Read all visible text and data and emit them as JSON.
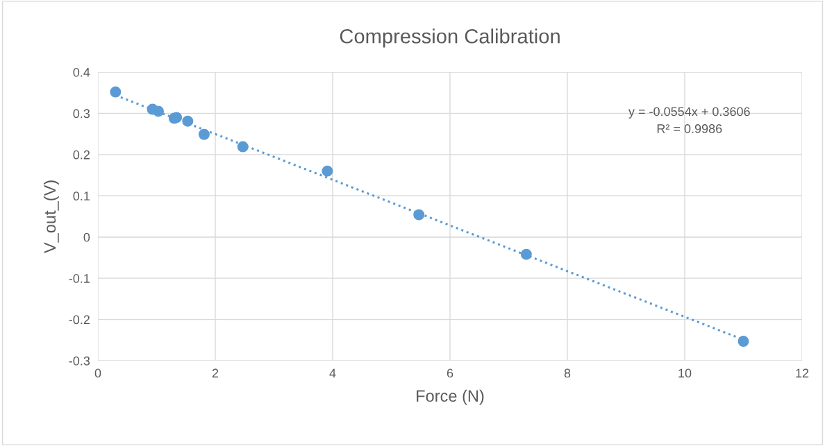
{
  "chart_data": {
    "type": "scatter",
    "title": "Compression Calibration",
    "xlabel": "Force (N)",
    "ylabel": "V_out_(V)",
    "xlim": [
      0,
      12
    ],
    "xticks": [
      0,
      2,
      4,
      6,
      8,
      10,
      12
    ],
    "ylim": [
      -0.3,
      0.4
    ],
    "yticks": [
      -0.3,
      -0.2,
      -0.1,
      0,
      0.1,
      0.2,
      0.3,
      0.4
    ],
    "grid": true,
    "legend": false,
    "series": [
      {
        "type": "scatter",
        "color": "#5b9bd5",
        "marker": "circle",
        "x": [
          0.3,
          0.93,
          1.03,
          1.3,
          1.34,
          1.53,
          1.81,
          2.47,
          3.91,
          5.47,
          7.3,
          11.0
        ],
        "values": [
          0.352,
          0.31,
          0.305,
          0.288,
          0.29,
          0.281,
          0.249,
          0.219,
          0.16,
          0.054,
          -0.042,
          -0.253
        ]
      },
      {
        "type": "line",
        "color": "#5b9bd5",
        "marker": "none",
        "line_style": "dotted",
        "x": [
          0.3,
          11.0
        ],
        "values": [
          0.344,
          -0.249
        ]
      }
    ],
    "annotations": [
      "y = -0.0554x + 0.3606\nR² = 0.9986"
    ]
  }
}
